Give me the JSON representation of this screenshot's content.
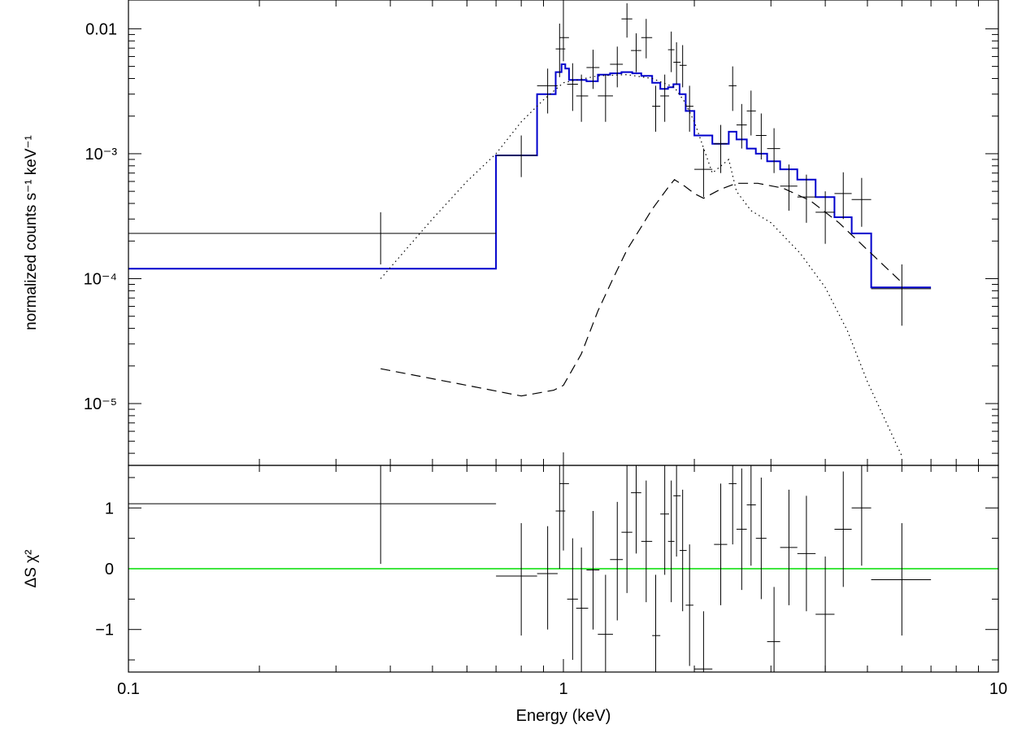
{
  "chart_data": [
    {
      "type": "line",
      "panel": "top",
      "ylabel": "normalized counts s⁻¹ keV⁻¹",
      "x_scale": "log",
      "y_scale": "log",
      "xlim": [
        0.1,
        10
      ],
      "ylim": [
        3.2e-06,
        0.017
      ],
      "y_tick_labels": [
        {
          "value": 0.01,
          "label": "0.01"
        },
        {
          "value": 0.001,
          "label": "10⁻³"
        },
        {
          "value": 0.0001,
          "label": "10⁻⁴"
        },
        {
          "value": 1e-05,
          "label": "10⁻⁵"
        }
      ],
      "data_points": [
        {
          "x": 0.38,
          "xlo": 0.1,
          "xhi": 0.7,
          "y": 0.00023,
          "ylo": 0.00013,
          "yhi": 0.00034
        },
        {
          "x": 0.8,
          "xlo": 0.7,
          "xhi": 0.87,
          "y": 0.00097,
          "ylo": 0.00065,
          "yhi": 0.0014
        },
        {
          "x": 0.92,
          "xlo": 0.87,
          "xhi": 0.97,
          "y": 0.0035,
          "ylo": 0.0021,
          "yhi": 0.0048
        },
        {
          "x": 0.98,
          "xlo": 0.96,
          "xhi": 1.01,
          "y": 0.0069,
          "ylo": 0.0041,
          "yhi": 0.011
        },
        {
          "x": 1.0,
          "xlo": 0.98,
          "xhi": 1.03,
          "y": 0.0085,
          "ylo": 0.0055,
          "yhi": 0.016
        },
        {
          "x": 1.05,
          "xlo": 1.02,
          "xhi": 1.08,
          "y": 0.0036,
          "ylo": 0.0022,
          "yhi": 0.0053
        },
        {
          "x": 1.1,
          "xlo": 1.07,
          "xhi": 1.14,
          "y": 0.0029,
          "ylo": 0.0018,
          "yhi": 0.0043
        },
        {
          "x": 1.17,
          "xlo": 1.13,
          "xhi": 1.21,
          "y": 0.0049,
          "ylo": 0.0033,
          "yhi": 0.0068
        },
        {
          "x": 1.25,
          "xlo": 1.2,
          "xhi": 1.3,
          "y": 0.0029,
          "ylo": 0.0018,
          "yhi": 0.0043
        },
        {
          "x": 1.33,
          "xlo": 1.28,
          "xhi": 1.37,
          "y": 0.0052,
          "ylo": 0.0034,
          "yhi": 0.0072
        },
        {
          "x": 1.4,
          "xlo": 1.36,
          "xhi": 1.44,
          "y": 0.012,
          "ylo": 0.0085,
          "yhi": 0.016
        },
        {
          "x": 1.47,
          "xlo": 1.43,
          "xhi": 1.51,
          "y": 0.0067,
          "ylo": 0.0045,
          "yhi": 0.0092
        },
        {
          "x": 1.55,
          "xlo": 1.51,
          "xhi": 1.6,
          "y": 0.0085,
          "ylo": 0.0058,
          "yhi": 0.012
        },
        {
          "x": 1.63,
          "xlo": 1.6,
          "xhi": 1.67,
          "y": 0.0024,
          "ylo": 0.0015,
          "yhi": 0.0035
        },
        {
          "x": 1.71,
          "xlo": 1.67,
          "xhi": 1.75,
          "y": 0.0029,
          "ylo": 0.0018,
          "yhi": 0.0043
        },
        {
          "x": 1.77,
          "xlo": 1.74,
          "xhi": 1.8,
          "y": 0.0068,
          "ylo": 0.0045,
          "yhi": 0.0095
        },
        {
          "x": 1.82,
          "xlo": 1.79,
          "xhi": 1.86,
          "y": 0.0054,
          "ylo": 0.0036,
          "yhi": 0.0078
        },
        {
          "x": 1.88,
          "xlo": 1.85,
          "xhi": 1.92,
          "y": 0.0051,
          "ylo": 0.0034,
          "yhi": 0.0074
        },
        {
          "x": 1.95,
          "xlo": 1.91,
          "xhi": 1.99,
          "y": 0.0024,
          "ylo": 0.0015,
          "yhi": 0.0035
        },
        {
          "x": 2.1,
          "xlo": 2.0,
          "xhi": 2.2,
          "y": 0.00075,
          "ylo": 0.00045,
          "yhi": 0.0011
        },
        {
          "x": 2.3,
          "xlo": 2.22,
          "xhi": 2.38,
          "y": 0.0012,
          "ylo": 0.0007,
          "yhi": 0.0017
        },
        {
          "x": 2.45,
          "xlo": 2.4,
          "xhi": 2.5,
          "y": 0.0035,
          "ylo": 0.0022,
          "yhi": 0.005
        },
        {
          "x": 2.57,
          "xlo": 2.5,
          "xhi": 2.64,
          "y": 0.0017,
          "ylo": 0.0011,
          "yhi": 0.0025
        },
        {
          "x": 2.7,
          "xlo": 2.64,
          "xhi": 2.77,
          "y": 0.0022,
          "ylo": 0.0014,
          "yhi": 0.0032
        },
        {
          "x": 2.85,
          "xlo": 2.77,
          "xhi": 2.93,
          "y": 0.0014,
          "ylo": 0.0009,
          "yhi": 0.0021
        },
        {
          "x": 3.05,
          "xlo": 2.94,
          "xhi": 3.15,
          "y": 0.0011,
          "ylo": 0.0007,
          "yhi": 0.0016
        },
        {
          "x": 3.3,
          "xlo": 3.15,
          "xhi": 3.45,
          "y": 0.00055,
          "ylo": 0.00035,
          "yhi": 0.00082
        },
        {
          "x": 3.62,
          "xlo": 3.45,
          "xhi": 3.8,
          "y": 0.00045,
          "ylo": 0.00028,
          "yhi": 0.00068
        },
        {
          "x": 4.0,
          "xlo": 3.8,
          "xhi": 4.2,
          "y": 0.00034,
          "ylo": 0.00019,
          "yhi": 0.0005
        },
        {
          "x": 4.4,
          "xlo": 4.2,
          "xhi": 4.6,
          "y": 0.00048,
          "ylo": 0.0003,
          "yhi": 0.00071
        },
        {
          "x": 4.85,
          "xlo": 4.6,
          "xhi": 5.1,
          "y": 0.00043,
          "ylo": 0.00026,
          "yhi": 0.00064
        },
        {
          "x": 6.0,
          "xlo": 5.1,
          "xhi": 7.0,
          "y": 8.3e-05,
          "ylo": 4.2e-05,
          "yhi": 0.00013
        }
      ],
      "series": [
        {
          "style": "step",
          "color": "#0000cc",
          "x": [
            0.1,
            0.7,
            0.87,
            0.96,
            0.99,
            1.01,
            1.03,
            1.07,
            1.13,
            1.2,
            1.28,
            1.36,
            1.44,
            1.51,
            1.6,
            1.67,
            1.74,
            1.79,
            1.85,
            1.91,
            2.0,
            2.2,
            2.4,
            2.5,
            2.64,
            2.77,
            2.94,
            3.15,
            3.45,
            3.8,
            4.2,
            4.6,
            5.1,
            7.0
          ],
          "y": [
            0.00012,
            0.00097,
            0.003,
            0.0045,
            0.0052,
            0.0048,
            0.0039,
            0.0039,
            0.0038,
            0.0043,
            0.0044,
            0.0045,
            0.0044,
            0.0042,
            0.0037,
            0.0033,
            0.0034,
            0.0036,
            0.003,
            0.0022,
            0.0014,
            0.0012,
            0.0015,
            0.0013,
            0.0011,
            0.001,
            0.00087,
            0.00075,
            0.00062,
            0.00045,
            0.00031,
            0.00023,
            8.5e-05,
            8.5e-05
          ]
        },
        {
          "style": "dotted",
          "color": "#000000",
          "x": [
            0.38,
            0.5,
            0.6,
            0.7,
            0.8,
            0.9,
            1.0,
            1.2,
            1.4,
            1.6,
            1.8,
            1.9,
            2.0,
            2.2,
            2.4,
            2.5,
            2.7,
            3.0,
            3.5,
            4.0,
            4.5,
            5.0,
            6.0
          ],
          "y": [
            0.0001,
            0.0003,
            0.0006,
            0.001,
            0.0018,
            0.0027,
            0.0037,
            0.0042,
            0.0043,
            0.004,
            0.0034,
            0.0026,
            0.0018,
            0.0007,
            0.0009,
            0.0005,
            0.00035,
            0.00028,
            0.00016,
            8.5e-05,
            3.8e-05,
            1.5e-05,
            3.8e-06
          ]
        },
        {
          "style": "dashed",
          "color": "#000000",
          "x": [
            0.38,
            0.6,
            0.8,
            0.95,
            1.0,
            1.1,
            1.2,
            1.3,
            1.4,
            1.5,
            1.6,
            1.75,
            1.8,
            1.9,
            2.0,
            2.1,
            2.3,
            2.5,
            2.8,
            3.2,
            3.7,
            4.3,
            5.0,
            6.0
          ],
          "y": [
            1.9e-05,
            1.4e-05,
            1.15e-05,
            1.28e-05,
            1.4e-05,
            2.5e-05,
            5.5e-05,
            0.0001,
            0.00017,
            0.00025,
            0.00036,
            0.00055,
            0.00062,
            0.00055,
            0.00048,
            0.00044,
            0.00052,
            0.00058,
            0.00058,
            0.00053,
            0.00042,
            0.00028,
            0.00017,
            9.3e-05
          ]
        }
      ]
    },
    {
      "type": "scatter",
      "panel": "bottom",
      "xlabel": "Energy (keV)",
      "ylabel": "ΔS χ²",
      "x_scale": "log",
      "xlim": [
        0.1,
        10
      ],
      "ylim": [
        -1.7,
        1.7
      ],
      "x_tick_labels": [
        {
          "value": 0.1,
          "label": "0.1"
        },
        {
          "value": 1,
          "label": "1"
        },
        {
          "value": 10,
          "label": "10"
        }
      ],
      "y_tick_labels": [
        {
          "value": 1,
          "label": "1"
        },
        {
          "value": 0,
          "label": "0"
        },
        {
          "value": -1,
          "label": "−1"
        }
      ],
      "zero_line_color": "#00dd00",
      "data_points": [
        {
          "x": 0.38,
          "xlo": 0.1,
          "xhi": 0.7,
          "y": 1.07,
          "ylo": 0.08,
          "yhi": 1.7
        },
        {
          "x": 0.8,
          "xlo": 0.7,
          "xhi": 0.87,
          "y": -0.12,
          "ylo": -1.1,
          "yhi": 0.75
        },
        {
          "x": 0.92,
          "xlo": 0.87,
          "xhi": 0.97,
          "y": -0.08,
          "ylo": -1.0,
          "yhi": 0.7
        },
        {
          "x": 0.98,
          "xlo": 0.96,
          "xhi": 1.01,
          "y": 0.95,
          "ylo": 0.0,
          "yhi": 1.7
        },
        {
          "x": 1.0,
          "xlo": 0.98,
          "xhi": 1.03,
          "y": 1.4,
          "ylo": 0.3,
          "yhi": 1.7
        },
        {
          "x": 1.05,
          "xlo": 1.02,
          "xhi": 1.08,
          "y": -0.5,
          "ylo": -1.5,
          "yhi": 0.5
        },
        {
          "x": 1.1,
          "xlo": 1.07,
          "xhi": 1.14,
          "y": -0.65,
          "ylo": -1.7,
          "yhi": 0.35
        },
        {
          "x": 1.17,
          "xlo": 1.13,
          "xhi": 1.21,
          "y": -0.02,
          "ylo": -1.0,
          "yhi": 0.95
        },
        {
          "x": 1.25,
          "xlo": 1.2,
          "xhi": 1.3,
          "y": -1.08,
          "ylo": -1.7,
          "yhi": -0.1
        },
        {
          "x": 1.33,
          "xlo": 1.28,
          "xhi": 1.37,
          "y": 0.15,
          "ylo": -0.85,
          "yhi": 1.1
        },
        {
          "x": 1.4,
          "xlo": 1.36,
          "xhi": 1.44,
          "y": 0.6,
          "ylo": -0.4,
          "yhi": 1.7
        },
        {
          "x": 1.47,
          "xlo": 1.43,
          "xhi": 1.51,
          "y": 1.25,
          "ylo": 0.25,
          "yhi": 1.7
        },
        {
          "x": 1.55,
          "xlo": 1.51,
          "xhi": 1.6,
          "y": 0.45,
          "ylo": -0.55,
          "yhi": 1.45
        },
        {
          "x": 1.63,
          "xlo": 1.6,
          "xhi": 1.67,
          "y": -1.1,
          "ylo": -1.7,
          "yhi": -0.1
        },
        {
          "x": 1.71,
          "xlo": 1.67,
          "xhi": 1.75,
          "y": 0.9,
          "ylo": -0.1,
          "yhi": 1.7
        },
        {
          "x": 1.77,
          "xlo": 1.74,
          "xhi": 1.8,
          "y": 0.45,
          "ylo": -0.55,
          "yhi": 1.45
        },
        {
          "x": 1.82,
          "xlo": 1.79,
          "xhi": 1.86,
          "y": 1.2,
          "ylo": 0.2,
          "yhi": 1.7
        },
        {
          "x": 1.88,
          "xlo": 1.85,
          "xhi": 1.92,
          "y": 0.3,
          "ylo": -0.7,
          "yhi": 1.3
        },
        {
          "x": 1.95,
          "xlo": 1.91,
          "xhi": 1.99,
          "y": -0.6,
          "ylo": -1.6,
          "yhi": 0.4
        },
        {
          "x": 2.1,
          "xlo": 2.0,
          "xhi": 2.2,
          "y": -1.65,
          "ylo": -1.7,
          "yhi": -0.7
        },
        {
          "x": 2.3,
          "xlo": 2.22,
          "xhi": 2.38,
          "y": 0.4,
          "ylo": -0.6,
          "yhi": 1.4
        },
        {
          "x": 2.45,
          "xlo": 2.4,
          "xhi": 2.5,
          "y": 1.4,
          "ylo": 0.4,
          "yhi": 1.7
        },
        {
          "x": 2.57,
          "xlo": 2.5,
          "xhi": 2.64,
          "y": 0.65,
          "ylo": -0.35,
          "yhi": 1.65
        },
        {
          "x": 2.7,
          "xlo": 2.64,
          "xhi": 2.77,
          "y": 1.05,
          "ylo": 0.05,
          "yhi": 1.7
        },
        {
          "x": 2.85,
          "xlo": 2.77,
          "xhi": 2.93,
          "y": 0.5,
          "ylo": -0.5,
          "yhi": 1.5
        },
        {
          "x": 3.05,
          "xlo": 2.94,
          "xhi": 3.15,
          "y": -1.2,
          "ylo": -1.7,
          "yhi": -0.3
        },
        {
          "x": 3.3,
          "xlo": 3.15,
          "xhi": 3.45,
          "y": 0.35,
          "ylo": -0.6,
          "yhi": 1.3
        },
        {
          "x": 3.62,
          "xlo": 3.45,
          "xhi": 3.8,
          "y": 0.25,
          "ylo": -0.7,
          "yhi": 1.2
        },
        {
          "x": 4.0,
          "xlo": 3.8,
          "xhi": 4.2,
          "y": -0.75,
          "ylo": -1.7,
          "yhi": 0.2
        },
        {
          "x": 4.4,
          "xlo": 4.2,
          "xhi": 4.6,
          "y": 0.65,
          "ylo": -0.3,
          "yhi": 1.6
        },
        {
          "x": 4.85,
          "xlo": 4.6,
          "xhi": 5.1,
          "y": 1.0,
          "ylo": 0.05,
          "yhi": 1.7
        },
        {
          "x": 6.0,
          "xlo": 5.1,
          "xhi": 7.0,
          "y": -0.18,
          "ylo": -1.1,
          "yhi": 0.75
        }
      ]
    }
  ]
}
